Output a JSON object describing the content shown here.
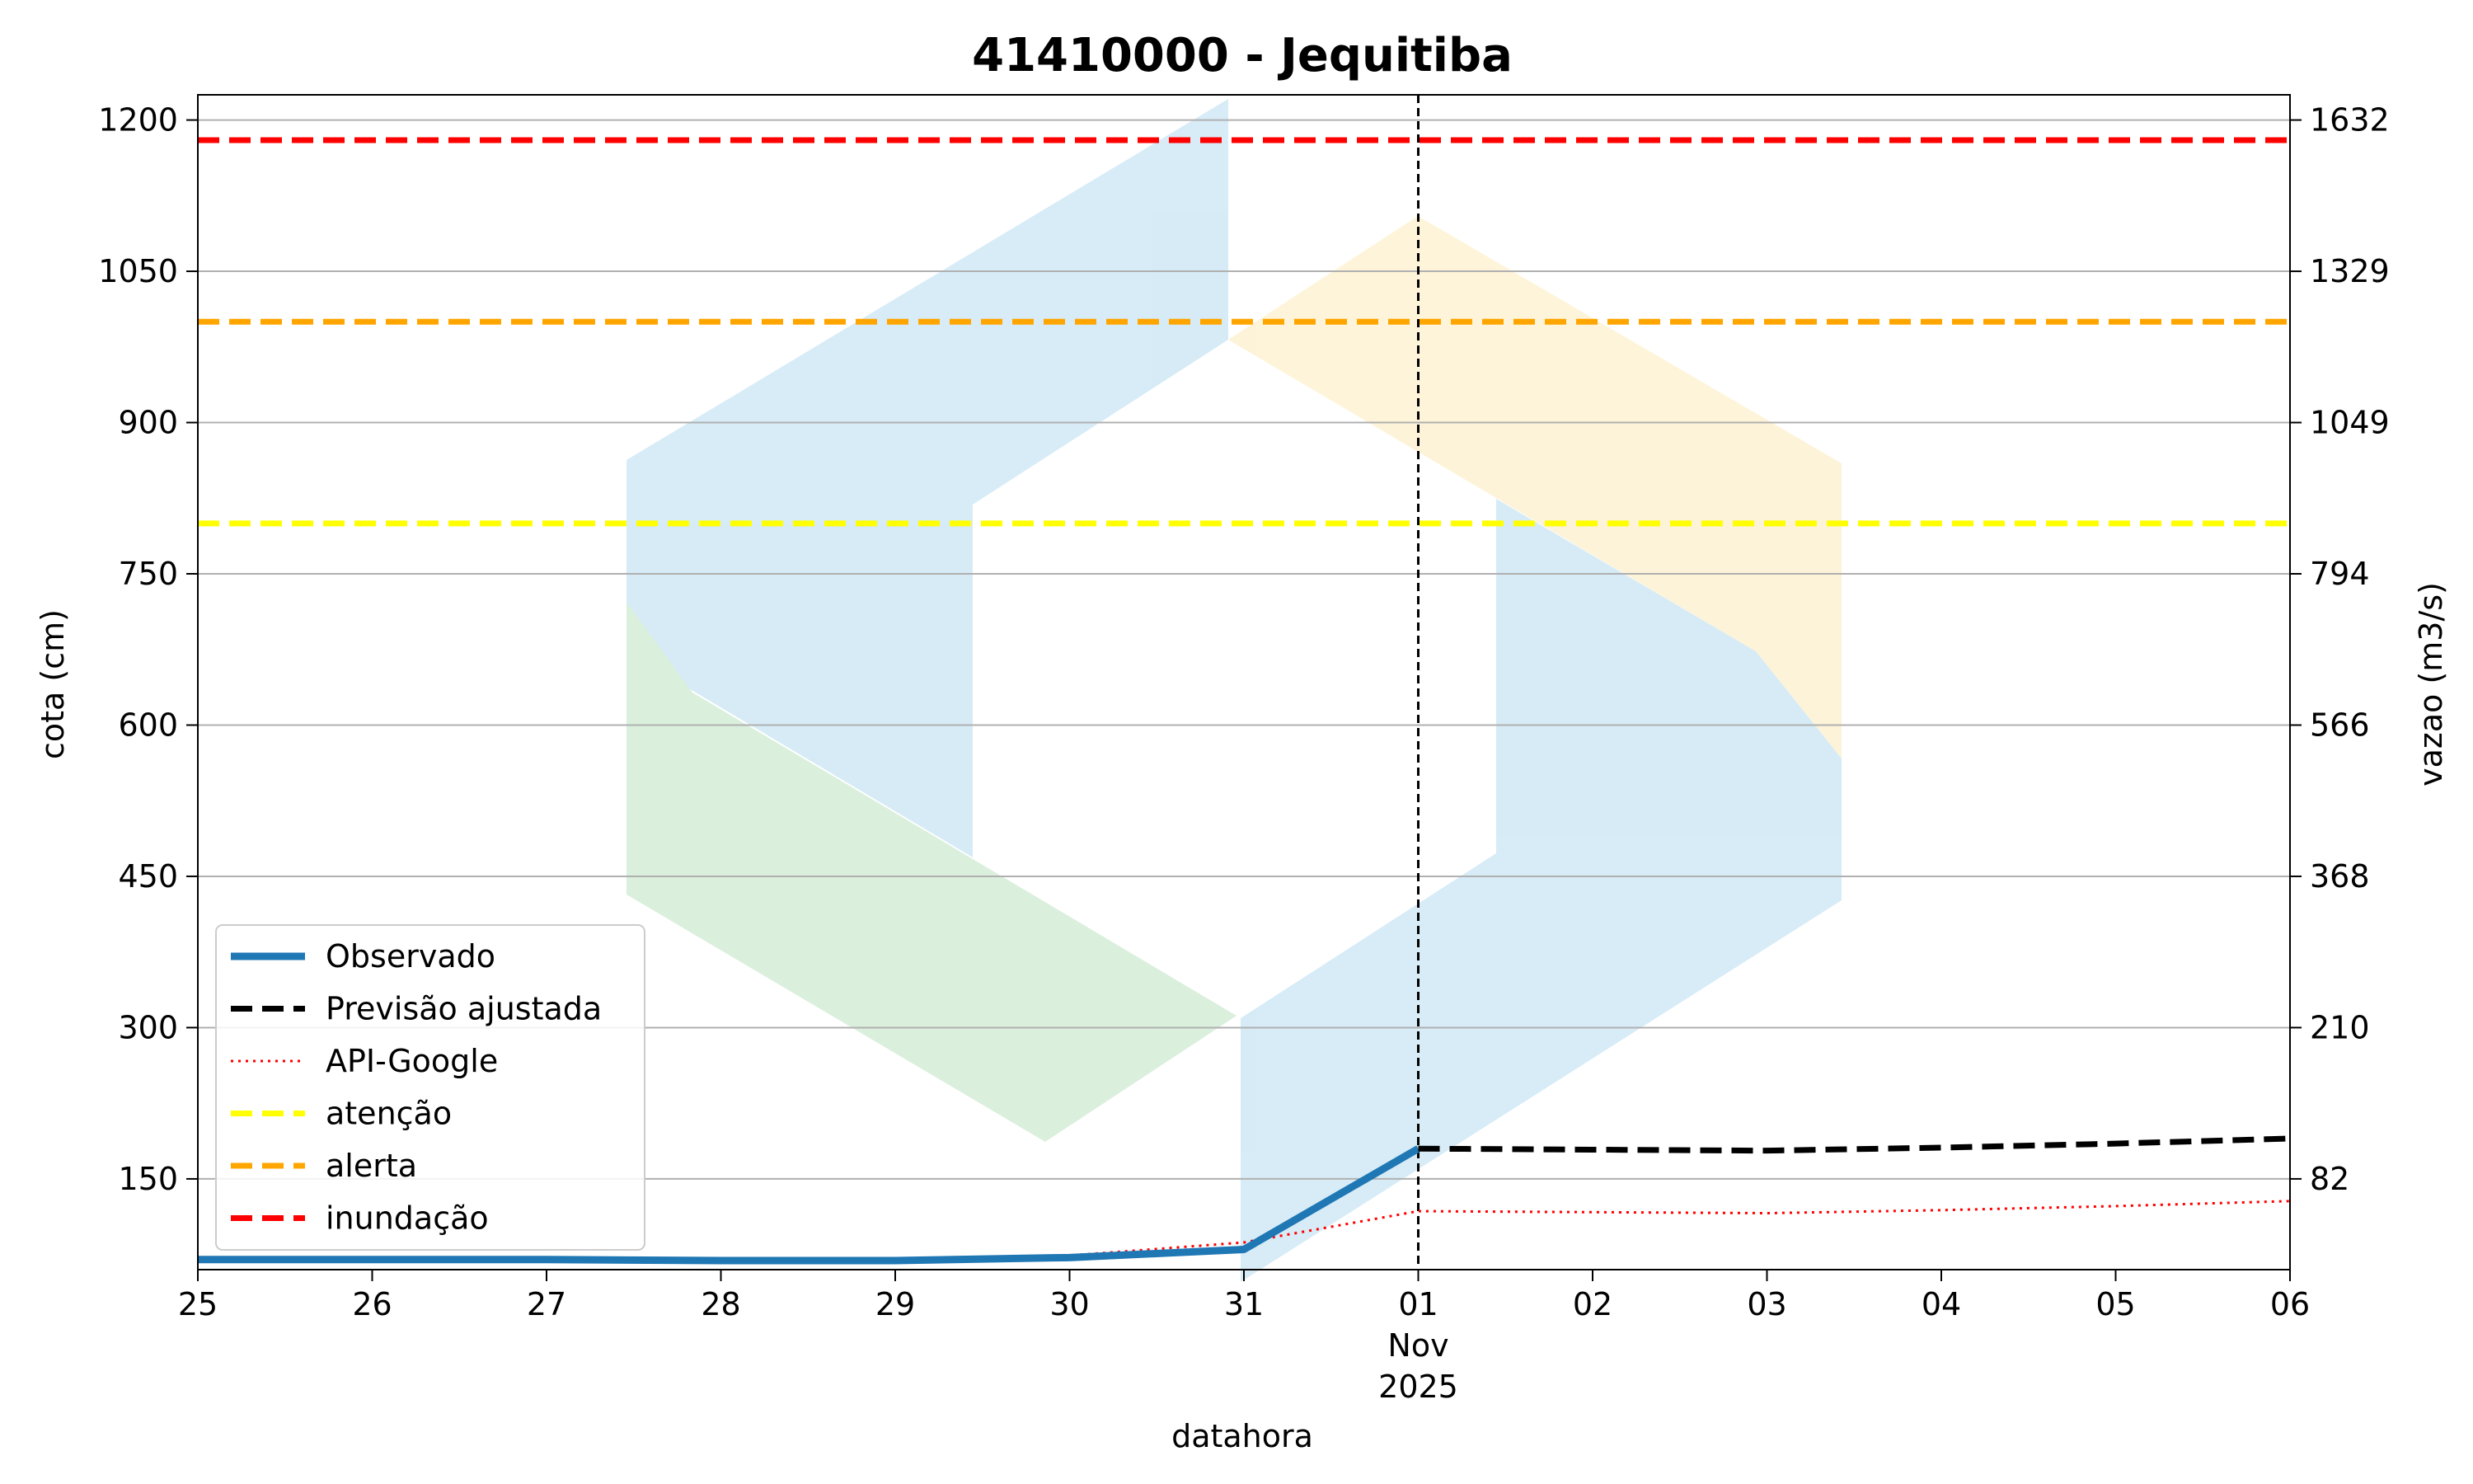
{
  "chart_data": {
    "type": "line",
    "title": "41410000 - Jequitiba",
    "xlabel": "datahora",
    "ylabel": "cota (cm)",
    "y2label": "vazao (m3/s)",
    "x_tick_labels": [
      "25",
      "26",
      "27",
      "28",
      "29",
      "30",
      "31",
      "01",
      "02",
      "03",
      "04",
      "05",
      "06"
    ],
    "x_tick_sublabels": [
      "Nov",
      "2025"
    ],
    "xlim": [
      "2025-10-25",
      "2025-11-06"
    ],
    "ylim": [
      60,
      1225
    ],
    "y_ticks": [
      150,
      300,
      450,
      600,
      750,
      900,
      1050,
      1200
    ],
    "y2_ticks": [
      {
        "cota": 150,
        "label": "82"
      },
      {
        "cota": 300,
        "label": "210"
      },
      {
        "cota": 450,
        "label": "368"
      },
      {
        "cota": 600,
        "label": "566"
      },
      {
        "cota": 750,
        "label": "794"
      },
      {
        "cota": 900,
        "label": "1049"
      },
      {
        "cota": 1050,
        "label": "1329"
      },
      {
        "cota": 1200,
        "label": "1632"
      }
    ],
    "grid": "horizontal",
    "forecast_start": "2025-11-01",
    "legend_position": "lower-left",
    "series": [
      {
        "name": "Observado",
        "color": "#1f77b4",
        "style": "solid",
        "x": [
          "2025-10-25",
          "2025-10-26",
          "2025-10-27",
          "2025-10-28",
          "2025-10-29",
          "2025-10-30",
          "2025-10-31",
          "2025-11-01"
        ],
        "y": [
          70,
          70,
          70,
          69,
          69,
          72,
          80,
          180
        ]
      },
      {
        "name": "Previsão ajustada",
        "color": "#000000",
        "style": "dashed",
        "x": [
          "2025-11-01",
          "2025-11-02",
          "2025-11-03",
          "2025-11-04",
          "2025-11-05",
          "2025-11-06"
        ],
        "y": [
          180,
          179,
          178,
          181,
          185,
          190
        ]
      },
      {
        "name": "API-Google",
        "color": "#ff0000",
        "style": "dotted",
        "x": [
          "2025-10-29",
          "2025-10-30",
          "2025-10-31",
          "2025-11-01",
          "2025-11-02",
          "2025-11-03",
          "2025-11-04",
          "2025-11-05",
          "2025-11-06"
        ],
        "y": [
          69,
          74,
          87,
          118,
          117,
          116,
          119,
          123,
          128
        ]
      },
      {
        "name": "atenção",
        "color": "#ffff00",
        "style": "dashed",
        "constant": 800
      },
      {
        "name": "alerta",
        "color": "#ffa500",
        "style": "dashed",
        "constant": 1000
      },
      {
        "name": "inundação",
        "color": "#ff0000",
        "style": "dashed",
        "constant": 1180
      }
    ]
  }
}
